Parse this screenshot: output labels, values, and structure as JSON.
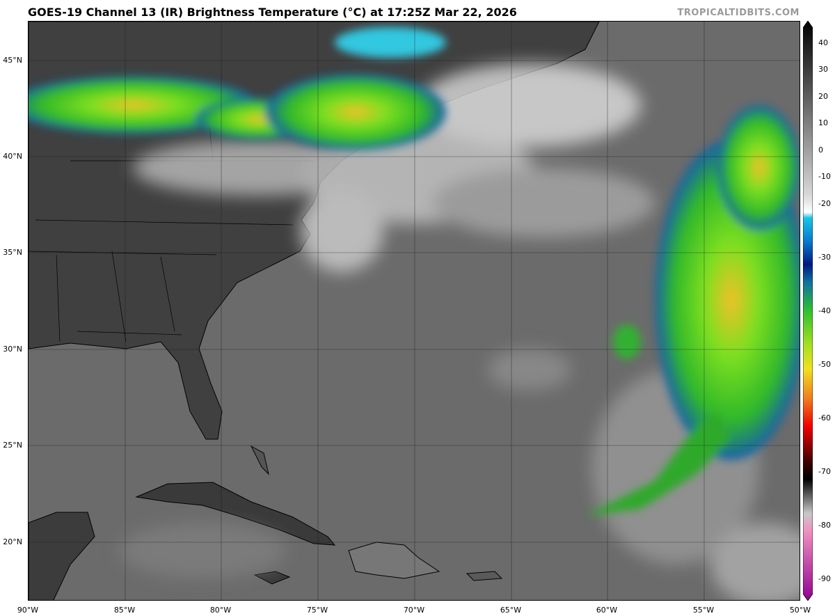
{
  "header": {
    "title": "GOES-19 Channel 13 (IR) Brightness Temperature (°C) at 17:25Z Mar 22, 2026",
    "credit": "TROPICALTIDBITS.COM"
  },
  "map": {
    "lon_range": [
      -90,
      -50
    ],
    "lat_range": [
      17,
      47
    ],
    "lat_ticks": [
      "45°N",
      "40°N",
      "35°N",
      "30°N",
      "25°N",
      "20°N"
    ],
    "lon_ticks": [
      "90°W",
      "85°W",
      "80°W",
      "75°W",
      "70°W",
      "65°W",
      "60°W",
      "55°W",
      "50°W"
    ],
    "colors": {
      "ocean": "#6d6d6d",
      "land": "#3f3f3f",
      "cloud": "#d9d9d9",
      "cold_cloud": "#35c02a"
    }
  },
  "colorbar": {
    "labels": [
      "40",
      "30",
      "20",
      "10",
      "0",
      "-10",
      "-20",
      "-30",
      "-40",
      "-50",
      "-60",
      "-70",
      "-80",
      "-90"
    ],
    "range": [
      -93,
      42
    ]
  }
}
